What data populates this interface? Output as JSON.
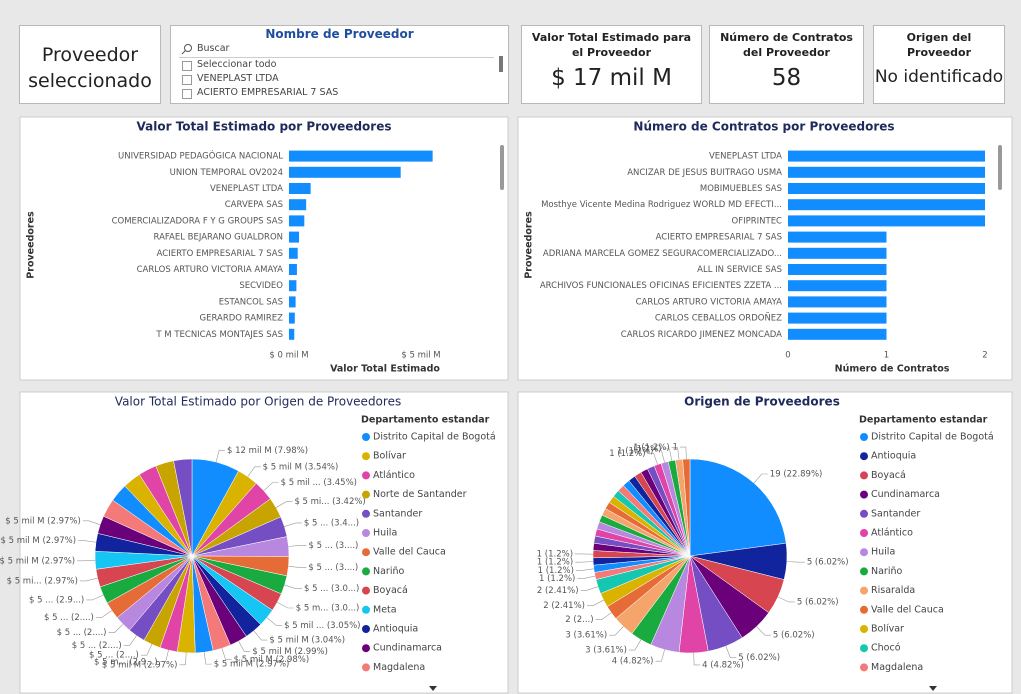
{
  "selected_card": "Proveedor seleccionado",
  "slicer": {
    "title": "Nombre de Proveedor",
    "search": "Buscar",
    "options": [
      "Seleccionar todo",
      "VENEPLAST LTDA",
      "ACIERTO EMPRESARIAL 7 SAS"
    ]
  },
  "cards": [
    {
      "label": "Valor Total Estimado para el Proveedor",
      "value": "$ 17 mil M"
    },
    {
      "label": "Número de Contratos del Proveedor",
      "value": 58
    },
    {
      "label": "Origen del Proveedor",
      "value": "No identificado"
    }
  ],
  "chart_data": [
    {
      "type": "bar",
      "orientation": "horizontal",
      "title": "Valor Total Estimado por Proveedores",
      "x_label": "Valor Total Estimado",
      "y_label": "Proveedores",
      "color": "#118dff",
      "categories": [
        "UNIVERSIDAD PEDAGÓGICA NACIONAL",
        "UNION TEMPORAL OV2024",
        "VENEPLAST LTDA",
        "CARVEPA SAS",
        "COMERCIALIZADORA F Y G GROUPS SAS",
        "RAFAEL BEJARANO GUALDRON",
        "ACIERTO EMPRESARIAL 7 SAS",
        "CARLOS ARTURO VICTORIA AMAYA",
        "SECVIDEO",
        "ESTANCOL SAS",
        "GERARDO RAMIREZ",
        "T M TECNICAS MONTAJES SAS"
      ],
      "values": [
        5.44,
        4.23,
        0.82,
        0.65,
        0.58,
        0.38,
        0.33,
        0.3,
        0.28,
        0.25,
        0.22,
        0.2
      ],
      "xlim": [
        0,
        5.7
      ],
      "xticks": [
        {
          "value": 0,
          "label": "$ 0 mil M"
        },
        {
          "value": 5,
          "label": "$ 5 mil M"
        }
      ]
    },
    {
      "type": "bar",
      "orientation": "horizontal",
      "title": "Número de Contratos por Proveedores",
      "x_label": "Número de Contratos",
      "y_label": "Proveedores",
      "color": "#118dff",
      "categories": [
        "VENEPLAST LTDA",
        "ANCIZAR DE JESUS BUITRAGO USMA",
        "MOBIMUEBLES SAS",
        "Mosthye Vicente Medina Rodriguez WORLD MD EFECTI...",
        "OFIPRINTEC",
        "ACIERTO EMPRESARIAL 7 SAS",
        "ADRIANA MARCELA GOMEZ SEGURACOMERCIALIZADO...",
        "ALL IN SERVICE SAS",
        "ARCHIVOS FUNCIONALES OFICINAS EFICIENTES ZZETA ...",
        "CARLOS ARTURO VICTORIA AMAYA",
        "CARLOS CEBALLOS ORDOÑEZ",
        "CARLOS RICARDO JIMENEZ MONCADA"
      ],
      "values": [
        2,
        2,
        2,
        2,
        2,
        1,
        1,
        1,
        1,
        1,
        1,
        1
      ],
      "xlim": [
        0,
        2
      ],
      "xticks": [
        0,
        1,
        2
      ]
    },
    {
      "type": "pie",
      "title": "Valor Total Estimado por Origen de Proveedores",
      "legend_title": "Departamento estandar",
      "legend": [
        {
          "name": "Distrito Capital de Bogotá",
          "color": "#118dff"
        },
        {
          "name": "Bolívar",
          "color": "#d9b300"
        },
        {
          "name": "Atlántico",
          "color": "#e044a7"
        },
        {
          "name": "Norte de Santander",
          "color": "#c8a400"
        },
        {
          "name": "Santander",
          "color": "#744ec2"
        },
        {
          "name": "Huila",
          "color": "#b887e0"
        },
        {
          "name": "Valle del Cauca",
          "color": "#e66c37"
        },
        {
          "name": "Nariño",
          "color": "#1aab40"
        },
        {
          "name": "Boyacá",
          "color": "#d64550"
        },
        {
          "name": "Meta",
          "color": "#15c6f4"
        },
        {
          "name": "Antioquia",
          "color": "#12239e"
        },
        {
          "name": "Cundinamarca",
          "color": "#6b007b"
        },
        {
          "name": "Magdalena",
          "color": "#f47a7a"
        }
      ],
      "values": [
        7.98,
        3.54,
        3.45,
        3.42,
        3.4,
        3.3,
        3.2,
        3.1,
        3.05,
        3.05,
        3.04,
        2.99,
        2.98,
        2.97,
        2.97,
        2.9,
        2.9,
        2.9,
        2.9,
        2.9,
        2.9,
        2.97,
        2.97,
        2.97,
        2.97,
        3.05,
        3.05,
        3.05,
        3.05,
        3.04,
        3.04
      ],
      "value_labels": [
        "$ 12 mil M (7.98%)",
        "$ 5 mil M (3.54%)",
        "$ 5 mil ... (3.45%)",
        "$ 5 mi... (3.42%)",
        "$ 5 ... (3.4...)",
        "$ 5 ... (3....)",
        "$ 5 ... (3....)",
        "$ 5 ... (3.0...)",
        "$ 5 m... (3.0...)",
        "$ 5 mil ... (3.05%)",
        "$ 5 mil M (3.04%)",
        "$ 5 mil M (2.99%)",
        "$ 5 mil M (2.98%)",
        "$ 5 mil M (2.97%)",
        "$ 5 mil M (2.97%)",
        "$ 5 m... (2.9...)",
        "$ 5 ... (2....)",
        "$ 5 ... (2....)",
        "$ 5 ... (2....)",
        "$ 5 ... (2....)",
        "$ 5 ... (2.9...)",
        "$ 5 mi... (2.97%)",
        "$ 5 mil M (2.97%)",
        "$ 5 mil M (2.97%)",
        "$ 5 mil M (2.97%)",
        null,
        null,
        null,
        null,
        null,
        null
      ]
    },
    {
      "type": "pie",
      "title": "Origen de Proveedores",
      "legend_title": "Departamento estandar",
      "legend": [
        {
          "name": "Distrito Capital de Bogotá",
          "color": "#118dff"
        },
        {
          "name": "Antioquia",
          "color": "#12239e"
        },
        {
          "name": "Boyacá",
          "color": "#d64550"
        },
        {
          "name": "Cundinamarca",
          "color": "#6b007b"
        },
        {
          "name": "Santander",
          "color": "#744ec2"
        },
        {
          "name": "Atlántico",
          "color": "#e044a7"
        },
        {
          "name": "Huila",
          "color": "#b887e0"
        },
        {
          "name": "Nariño",
          "color": "#1aab40"
        },
        {
          "name": "Risaralda",
          "color": "#f5a56b"
        },
        {
          "name": "Valle del Cauca",
          "color": "#e66c37"
        },
        {
          "name": "Bolívar",
          "color": "#d9b300"
        },
        {
          "name": "Chocó",
          "color": "#15c6b0"
        },
        {
          "name": "Magdalena",
          "color": "#f47a7a"
        }
      ],
      "values": [
        19,
        5,
        5,
        5,
        5,
        4,
        4,
        3,
        3,
        2,
        2,
        2,
        1,
        1,
        1,
        1,
        1,
        1,
        1,
        1,
        1,
        1,
        1,
        1,
        1,
        1,
        1,
        1,
        1,
        1,
        1,
        1,
        1,
        1,
        1,
        1
      ],
      "value_labels": [
        "19 (22.89%)",
        "5 (6.02%)",
        "5 (6.02%)",
        "5 (6.02%)",
        "5 (6.02%)",
        "4 (4.82%)",
        "4 (4.82%)",
        "3 (3.61%)",
        "3 (3.61%)",
        "2 (2...)",
        "2 (2.41%)",
        "2 (2.41%)",
        "1 (1.2%)",
        "1 (1.2%)",
        "1 (1.2%)",
        "1 (1.2%)",
        null,
        null,
        null,
        null,
        null,
        null,
        null,
        null,
        null,
        null,
        null,
        null,
        null,
        null,
        null,
        "1 (1.2%)",
        "1 (1.2%)",
        "(1.2%)",
        "1 (1.2%)",
        "1"
      ]
    }
  ]
}
